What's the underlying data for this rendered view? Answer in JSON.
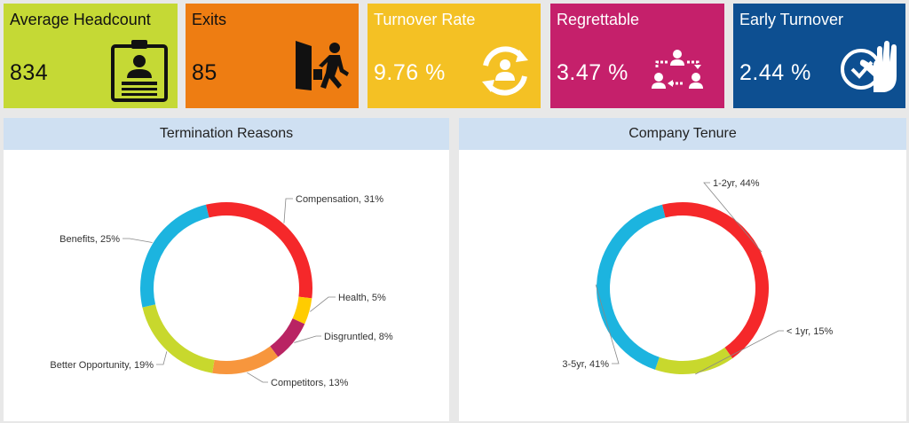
{
  "kpis": [
    {
      "title": "Average Headcount",
      "value": "834",
      "color": "#c5d935",
      "text_color": "#111111",
      "icon": "id-badge-icon"
    },
    {
      "title": "Exits",
      "value": "85",
      "color": "#ee7d12",
      "text_color": "#111111",
      "icon": "exit-door-person-icon"
    },
    {
      "title": "Turnover Rate",
      "value": "9.76 %",
      "color": "#f4c124",
      "text_color": "#ffffff",
      "icon": "person-cycle-icon"
    },
    {
      "title": "Regrettable",
      "value": "3.47 %",
      "color": "#c5206b",
      "text_color": "#ffffff",
      "icon": "people-exchange-icon"
    },
    {
      "title": "Early Turnover",
      "value": "2.44 %",
      "color": "#0d4f91",
      "text_color": "#ffffff",
      "icon": "clock-hand-icon"
    }
  ],
  "chart_data": [
    {
      "type": "pie",
      "donut": true,
      "title": "Termination Reasons",
      "slices": [
        {
          "label": "Compensation, 31%",
          "category": "Compensation",
          "value": 31,
          "color": "#f5282a"
        },
        {
          "label": "Health, 5%",
          "category": "Health",
          "value": 5,
          "color": "#ffcc00"
        },
        {
          "label": "Disgruntled, 8%",
          "category": "Disgruntled",
          "value": 8,
          "color": "#b92463"
        },
        {
          "label": "Competitors, 13%",
          "category": "Competitors",
          "value": 13,
          "color": "#f7963d"
        },
        {
          "label": "Better Opportunity, 19%",
          "category": "Better Opportunity",
          "value": 19,
          "color": "#c8d82d"
        },
        {
          "label": "Benefits, 25%",
          "category": "Benefits",
          "value": 25,
          "color": "#1cb4df"
        }
      ]
    },
    {
      "type": "pie",
      "donut": true,
      "title": "Company Tenure",
      "slices": [
        {
          "label": "1-2yr, 44%",
          "category": "1-2yr",
          "value": 44,
          "color": "#f5282a"
        },
        {
          "label": "< 1yr, 15%",
          "category": "< 1yr",
          "value": 15,
          "color": "#c8d82d"
        },
        {
          "label": "3-5yr, 41%",
          "category": "3-5yr",
          "value": 41,
          "color": "#1cb4df"
        }
      ]
    }
  ]
}
